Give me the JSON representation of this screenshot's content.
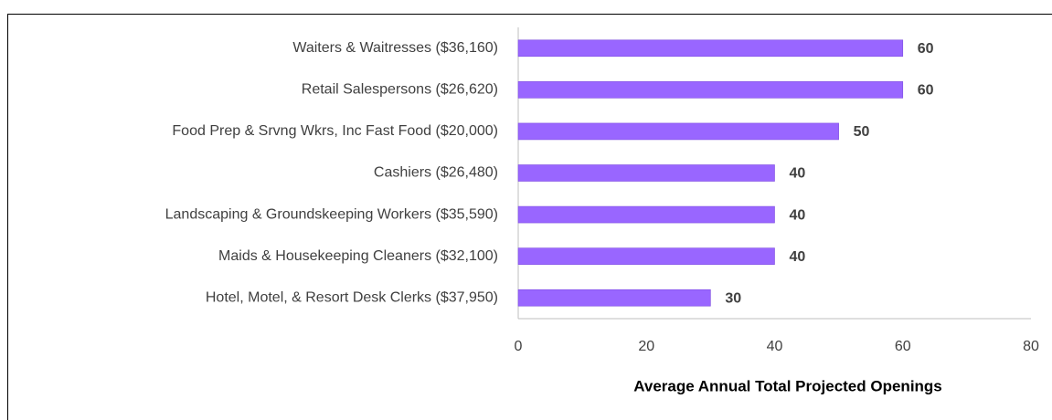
{
  "chart_data": {
    "type": "bar",
    "orientation": "horizontal",
    "x_label": "Average Annual Total Projected Openings",
    "categories": [
      "Waiters & Waitresses ($36,160)",
      "Retail Salespersons ($26,620)",
      "Food Prep & Srvng Wkrs, Inc Fast Food ($20,000)",
      "Cashiers ($26,480)",
      "Landscaping & Groundskeeping Workers ($35,590)",
      "Maids & Housekeeping Cleaners ($32,100)",
      "Hotel, Motel, & Resort Desk Clerks ($37,950)"
    ],
    "values": [
      60,
      60,
      50,
      40,
      40,
      40,
      30
    ],
    "color": "#9966ff",
    "xlim": [
      0,
      80
    ],
    "xticks": [
      0,
      20,
      40,
      60,
      80
    ],
    "grid": false
  }
}
